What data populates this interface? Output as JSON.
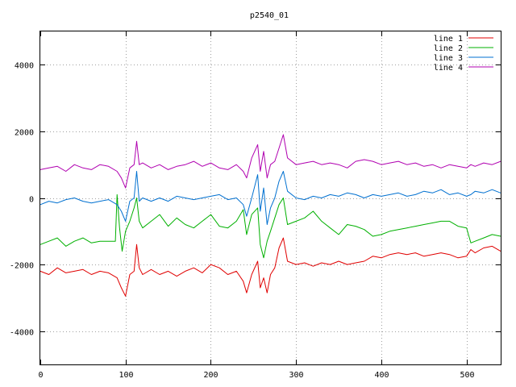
{
  "chart_data": {
    "type": "line",
    "title": "p2540_01",
    "xlabel": "",
    "ylabel": "",
    "xlim": [
      0,
      540
    ],
    "ylim": [
      -5000,
      5000
    ],
    "xticks": [
      0,
      100,
      200,
      300,
      400,
      500
    ],
    "yticks": [
      -4000,
      -2000,
      0,
      2000,
      4000
    ],
    "grid": true,
    "legend_position": "top-right",
    "colors": {
      "line 1": "#e00000",
      "line 2": "#00b000",
      "line 3": "#0070d0",
      "line 4": "#b000b0"
    },
    "series": [
      {
        "name": "line 1",
        "x": [
          0,
          10,
          20,
          30,
          40,
          50,
          60,
          70,
          80,
          90,
          95,
          100,
          105,
          110,
          113,
          116,
          120,
          130,
          140,
          150,
          160,
          170,
          180,
          190,
          200,
          210,
          220,
          230,
          238,
          242,
          248,
          255,
          258,
          262,
          266,
          270,
          275,
          280,
          285,
          290,
          300,
          310,
          320,
          330,
          340,
          350,
          360,
          370,
          380,
          390,
          400,
          410,
          420,
          430,
          440,
          450,
          460,
          470,
          480,
          490,
          500,
          505,
          510,
          520,
          530,
          540
        ],
        "y": [
          -2200,
          -2300,
          -2100,
          -2250,
          -2200,
          -2150,
          -2300,
          -2200,
          -2250,
          -2400,
          -2700,
          -2950,
          -2300,
          -2200,
          -1400,
          -2100,
          -2300,
          -2150,
          -2300,
          -2200,
          -2350,
          -2200,
          -2100,
          -2250,
          -2000,
          -2100,
          -2300,
          -2200,
          -2500,
          -2850,
          -2300,
          -1900,
          -2700,
          -2400,
          -2850,
          -2300,
          -2100,
          -1500,
          -1200,
          -1900,
          -2000,
          -1950,
          -2050,
          -1950,
          -2000,
          -1900,
          -2000,
          -1950,
          -1900,
          -1750,
          -1800,
          -1700,
          -1650,
          -1700,
          -1650,
          -1750,
          -1700,
          -1650,
          -1700,
          -1800,
          -1750,
          -1550,
          -1650,
          -1500,
          -1450,
          -1600
        ]
      },
      {
        "name": "line 2",
        "x": [
          0,
          10,
          20,
          30,
          40,
          50,
          60,
          70,
          80,
          88,
          90,
          93,
          96,
          100,
          105,
          110,
          113,
          116,
          120,
          130,
          140,
          150,
          160,
          170,
          180,
          190,
          200,
          210,
          220,
          230,
          238,
          242,
          248,
          255,
          258,
          262,
          266,
          270,
          275,
          280,
          285,
          290,
          300,
          310,
          320,
          330,
          340,
          350,
          360,
          370,
          380,
          390,
          400,
          410,
          420,
          430,
          440,
          450,
          460,
          470,
          480,
          490,
          500,
          505,
          510,
          520,
          530,
          540
        ],
        "y": [
          -1400,
          -1300,
          -1200,
          -1450,
          -1300,
          -1200,
          -1350,
          -1300,
          -1300,
          -1300,
          100,
          -900,
          -1600,
          -1000,
          -700,
          -300,
          0,
          -700,
          -900,
          -700,
          -500,
          -850,
          -600,
          -800,
          -900,
          -700,
          -500,
          -850,
          -900,
          -700,
          -350,
          -1100,
          -500,
          -300,
          -1400,
          -1800,
          -1300,
          -1000,
          -600,
          -200,
          0,
          -800,
          -700,
          -600,
          -400,
          -700,
          -900,
          -1100,
          -800,
          -850,
          -950,
          -1150,
          -1100,
          -1000,
          -950,
          -900,
          -850,
          -800,
          -750,
          -700,
          -700,
          -850,
          -900,
          -1350,
          -1300,
          -1200,
          -1100,
          -1150
        ]
      },
      {
        "name": "line 3",
        "x": [
          0,
          10,
          20,
          30,
          40,
          50,
          60,
          70,
          80,
          90,
          95,
          100,
          105,
          110,
          113,
          116,
          120,
          130,
          140,
          150,
          160,
          170,
          180,
          190,
          200,
          210,
          220,
          230,
          238,
          242,
          248,
          255,
          258,
          262,
          266,
          270,
          275,
          280,
          285,
          290,
          300,
          310,
          320,
          330,
          340,
          350,
          360,
          370,
          380,
          390,
          400,
          410,
          420,
          430,
          440,
          450,
          460,
          470,
          480,
          490,
          500,
          505,
          510,
          520,
          530,
          540
        ],
        "y": [
          -200,
          -100,
          -150,
          -50,
          0,
          -100,
          -150,
          -100,
          -50,
          -200,
          -400,
          -700,
          -100,
          0,
          800,
          -100,
          0,
          -100,
          0,
          -100,
          50,
          0,
          -50,
          0,
          50,
          100,
          -50,
          0,
          -200,
          -550,
          0,
          700,
          -400,
          300,
          -800,
          -300,
          0,
          500,
          800,
          200,
          0,
          -50,
          50,
          0,
          100,
          50,
          150,
          100,
          0,
          100,
          50,
          100,
          150,
          50,
          100,
          200,
          150,
          250,
          100,
          150,
          50,
          100,
          200,
          150,
          250,
          150
        ]
      },
      {
        "name": "line 4",
        "x": [
          0,
          10,
          20,
          30,
          40,
          50,
          60,
          70,
          80,
          90,
          95,
          100,
          105,
          110,
          113,
          116,
          120,
          130,
          140,
          150,
          160,
          170,
          180,
          190,
          200,
          210,
          220,
          230,
          238,
          242,
          248,
          255,
          258,
          262,
          266,
          270,
          275,
          280,
          285,
          290,
          300,
          310,
          320,
          330,
          340,
          350,
          360,
          370,
          380,
          390,
          400,
          410,
          420,
          430,
          440,
          450,
          460,
          470,
          480,
          490,
          500,
          505,
          510,
          520,
          530,
          540
        ],
        "y": [
          850,
          900,
          950,
          800,
          1000,
          900,
          850,
          1000,
          950,
          800,
          600,
          300,
          900,
          1000,
          1700,
          1000,
          1050,
          900,
          1000,
          850,
          950,
          1000,
          1100,
          950,
          1050,
          900,
          850,
          1000,
          800,
          600,
          1200,
          1600,
          800,
          1400,
          600,
          1000,
          1100,
          1500,
          1900,
          1200,
          1000,
          1050,
          1100,
          1000,
          1050,
          1000,
          900,
          1100,
          1150,
          1100,
          1000,
          1050,
          1100,
          1000,
          1050,
          950,
          1000,
          900,
          1000,
          950,
          900,
          1000,
          950,
          1050,
          1000,
          1100
        ]
      }
    ]
  }
}
